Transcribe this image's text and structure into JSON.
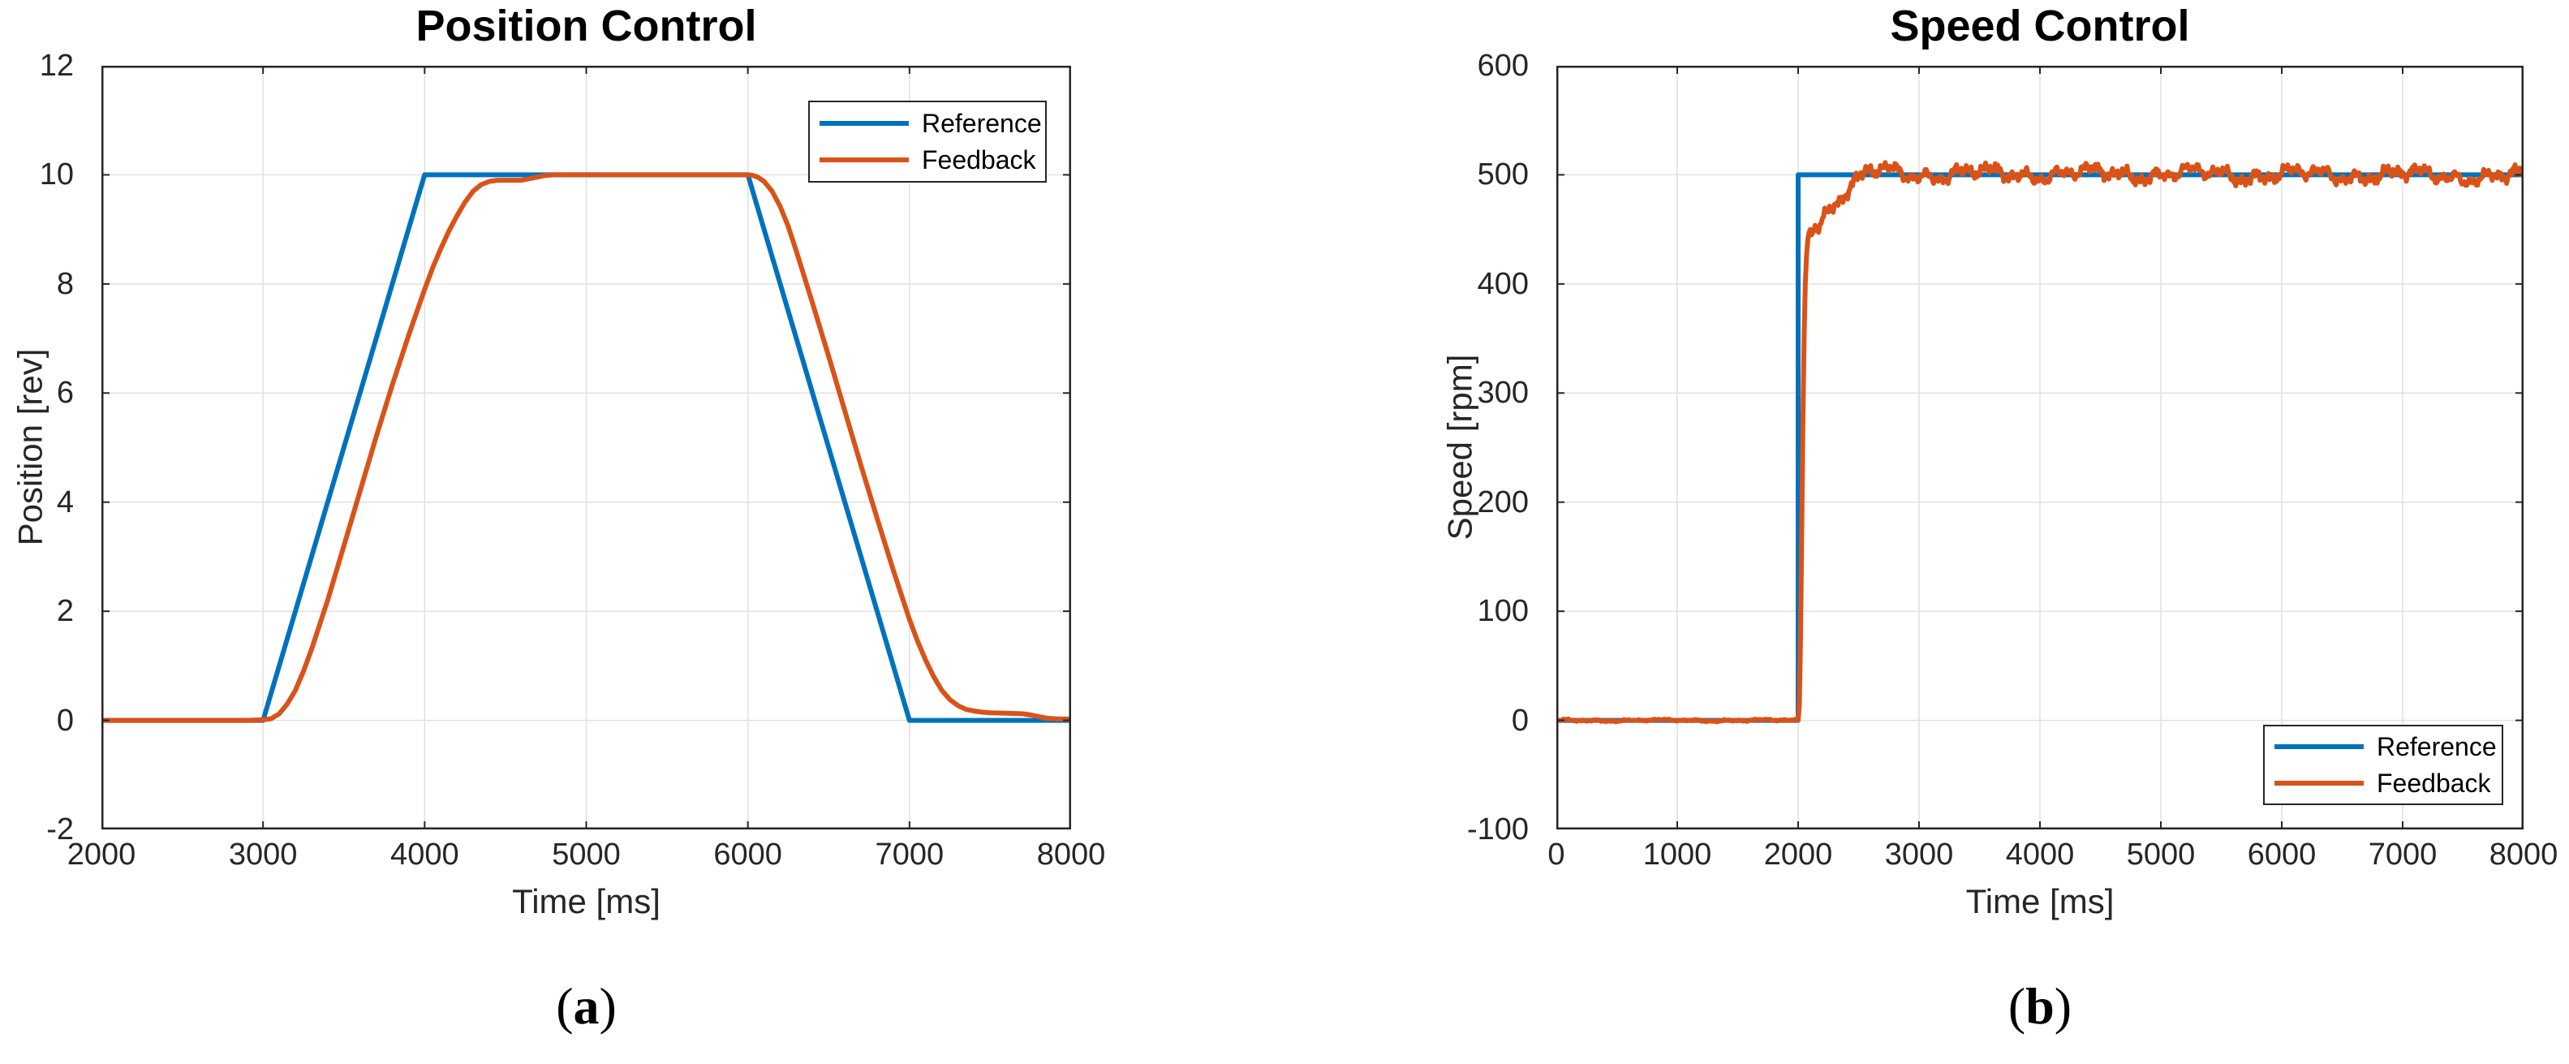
{
  "colors": {
    "reference": "#0072BD",
    "feedback": "#D95319",
    "grid": "#E0E0E0",
    "axis": "#262626",
    "text": "#262626",
    "title": "#000000",
    "background": "#FFFFFF"
  },
  "chart_data": [
    {
      "type": "line",
      "title": "Position Control",
      "xlabel": "Time [ms]",
      "ylabel": "Position [rev]",
      "caption": {
        "open": "(",
        "letter": "a",
        "close": ")"
      },
      "xlim": [
        2000,
        8000
      ],
      "ylim": [
        -2,
        12
      ],
      "xticks": [
        2000,
        3000,
        4000,
        5000,
        6000,
        7000,
        8000
      ],
      "yticks": [
        -2,
        0,
        2,
        4,
        6,
        8,
        10,
        12
      ],
      "grid": true,
      "legend": {
        "position": "top-right",
        "entries": [
          "Reference",
          "Feedback"
        ]
      },
      "series": [
        {
          "name": "Reference",
          "color_key": "reference",
          "points": [
            [
              2000,
              0
            ],
            [
              3000,
              0
            ],
            [
              4000,
              10
            ],
            [
              6000,
              10
            ],
            [
              7000,
              0
            ],
            [
              8000,
              0
            ]
          ]
        },
        {
          "name": "Feedback",
          "color_key": "feedback",
          "points": [
            [
              2000,
              0
            ],
            [
              2500,
              0
            ],
            [
              2900,
              0
            ],
            [
              3000,
              0.01
            ],
            [
              3050,
              0.03
            ],
            [
              3100,
              0.12
            ],
            [
              3150,
              0.3
            ],
            [
              3200,
              0.55
            ],
            [
              3250,
              0.9
            ],
            [
              3300,
              1.3
            ],
            [
              3400,
              2.2
            ],
            [
              3500,
              3.2
            ],
            [
              3600,
              4.2
            ],
            [
              3700,
              5.2
            ],
            [
              3800,
              6.15
            ],
            [
              3900,
              7.05
            ],
            [
              4000,
              7.9
            ],
            [
              4050,
              8.3
            ],
            [
              4100,
              8.65
            ],
            [
              4150,
              8.97
            ],
            [
              4200,
              9.25
            ],
            [
              4250,
              9.5
            ],
            [
              4300,
              9.7
            ],
            [
              4350,
              9.82
            ],
            [
              4400,
              9.88
            ],
            [
              4450,
              9.9
            ],
            [
              4500,
              9.9
            ],
            [
              4600,
              9.9
            ],
            [
              4650,
              9.93
            ],
            [
              4700,
              9.96
            ],
            [
              4750,
              9.99
            ],
            [
              4800,
              10
            ],
            [
              5500,
              10
            ],
            [
              6000,
              10
            ],
            [
              6030,
              9.99
            ],
            [
              6060,
              9.96
            ],
            [
              6100,
              9.88
            ],
            [
              6150,
              9.7
            ],
            [
              6200,
              9.42
            ],
            [
              6250,
              9.05
            ],
            [
              6300,
              8.6
            ],
            [
              6400,
              7.65
            ],
            [
              6500,
              6.67
            ],
            [
              6600,
              5.67
            ],
            [
              6700,
              4.67
            ],
            [
              6800,
              3.7
            ],
            [
              6900,
              2.75
            ],
            [
              7000,
              1.85
            ],
            [
              7050,
              1.45
            ],
            [
              7100,
              1.1
            ],
            [
              7150,
              0.8
            ],
            [
              7200,
              0.55
            ],
            [
              7250,
              0.38
            ],
            [
              7300,
              0.27
            ],
            [
              7350,
              0.2
            ],
            [
              7400,
              0.17
            ],
            [
              7450,
              0.15
            ],
            [
              7500,
              0.14
            ],
            [
              7600,
              0.13
            ],
            [
              7700,
              0.12
            ],
            [
              7750,
              0.1
            ],
            [
              7800,
              0.07
            ],
            [
              7850,
              0.04
            ],
            [
              7900,
              0.03
            ],
            [
              8000,
              0.02
            ]
          ]
        }
      ]
    },
    {
      "type": "line",
      "title": "Speed Control",
      "xlabel": "Time [ms]",
      "ylabel": "Speed [rpm]",
      "caption": {
        "open": "(",
        "letter": "b",
        "close": ")"
      },
      "xlim": [
        0,
        8000
      ],
      "ylim": [
        -100,
        600
      ],
      "xticks": [
        0,
        1000,
        2000,
        3000,
        4000,
        5000,
        6000,
        7000,
        8000
      ],
      "yticks": [
        -100,
        0,
        100,
        200,
        300,
        400,
        500,
        600
      ],
      "grid": true,
      "legend": {
        "position": "bottom-right",
        "entries": [
          "Reference",
          "Feedback"
        ]
      },
      "series": [
        {
          "name": "Reference",
          "color_key": "reference",
          "points": [
            [
              0,
              0
            ],
            [
              2000,
              0
            ],
            [
              2000,
              500
            ],
            [
              8000,
              500
            ]
          ]
        },
        {
          "name": "Feedback",
          "color_key": "feedback",
          "sample_step": 10,
          "points": [
            [
              0,
              0
            ],
            [
              1000,
              0
            ],
            [
              1990,
              0
            ],
            [
              2005,
              0
            ],
            [
              2012,
              20
            ],
            [
              2018,
              60
            ],
            [
              2025,
              120
            ],
            [
              2032,
              200
            ],
            [
              2040,
              280
            ],
            [
              2048,
              340
            ],
            [
              2056,
              390
            ],
            [
              2065,
              425
            ],
            [
              2075,
              445
            ],
            [
              2090,
              452
            ],
            [
              2110,
              450
            ],
            [
              2130,
              455
            ],
            [
              2150,
              458
            ],
            [
              2175,
              455
            ],
            [
              2200,
              462
            ],
            [
              2250,
              468
            ],
            [
              2300,
              475
            ],
            [
              2350,
              480
            ],
            [
              2400,
              486
            ],
            [
              2450,
              490
            ],
            [
              2500,
              494
            ],
            [
              2550,
              498
            ],
            [
              2600,
              501
            ],
            [
              2700,
              503
            ],
            [
              2800,
              502
            ],
            [
              3000,
              501
            ],
            [
              4000,
              501
            ],
            [
              5000,
              501
            ],
            [
              6000,
              500
            ],
            [
              7000,
              500
            ],
            [
              8000,
              498
            ]
          ],
          "noise": {
            "components": [
              {
                "amp": 4.0,
                "freq": 0.0071,
                "phase": 1.7
              },
              {
                "amp": 3.5,
                "freq": 0.023,
                "phase": 0.4
              },
              {
                "amp": 2.8,
                "freq": 0.053,
                "phase": 2.9
              },
              {
                "amp": 2.2,
                "freq": 0.151,
                "phase": 5.1
              },
              {
                "amp": 1.6,
                "freq": 0.317,
                "phase": 0.9
              }
            ],
            "windows": [
              {
                "range": [
                  60,
                  1995
                ],
                "scale": 0.12
              },
              {
                "range": [
                  2060,
                  8000
                ],
                "scale": 1
              }
            ]
          }
        }
      ]
    }
  ]
}
